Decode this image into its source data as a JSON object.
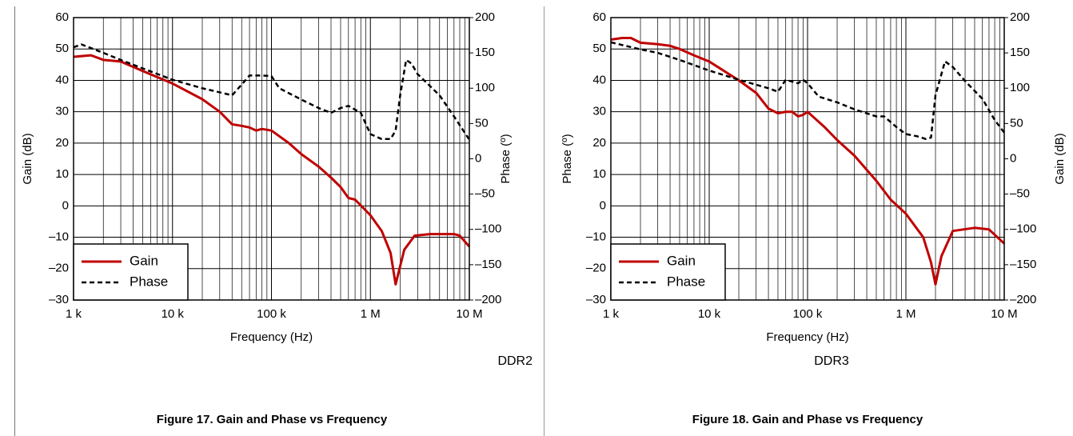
{
  "chart_data": [
    {
      "type": "line",
      "xlabel": "Frequency (Hz)",
      "ylabel": "Gain (dB)",
      "y2label": "Phase (º)",
      "annotation": "DDR2",
      "caption": "Figure 17. Gain and Phase vs Frequency",
      "xscale": "log",
      "xlim": [
        1000,
        10000000
      ],
      "xticks": [
        {
          "value": 1000,
          "label": "1 k"
        },
        {
          "value": 10000,
          "label": "10 k"
        },
        {
          "value": 100000,
          "label": "100 k"
        },
        {
          "value": 1000000,
          "label": "1 M"
        },
        {
          "value": 10000000,
          "label": "10 M"
        }
      ],
      "ylim": [
        -30,
        60
      ],
      "yticks": [
        60,
        50,
        40,
        30,
        20,
        10,
        0,
        {
          "value": -10,
          "label": "–10"
        },
        {
          "value": -20,
          "label": "–20"
        },
        {
          "value": -30,
          "label": "–30"
        }
      ],
      "y2lim": [
        -200,
        200
      ],
      "y2ticks": [
        200,
        150,
        100,
        50,
        0,
        {
          "value": -50,
          "label": "–50"
        },
        {
          "value": -100,
          "label": "–100"
        },
        {
          "value": -150,
          "label": "–150"
        },
        {
          "value": -200,
          "label": "–200"
        }
      ],
      "grid": true,
      "legend": "lower left",
      "series": [
        {
          "name": "Gain",
          "color": "#c00000",
          "dash": "solid",
          "x": [
            1000,
            1500,
            2000,
            3000,
            5000,
            10000,
            20000,
            30000,
            40000,
            50000,
            60000,
            70000,
            80000,
            100000,
            150000,
            200000,
            300000,
            400000,
            500000,
            600000,
            700000,
            1000000,
            1300000,
            1600000,
            1800000,
            2200000,
            2800000,
            4000000,
            7000000,
            8000000,
            10000000
          ],
          "values": [
            47.5,
            48,
            46.5,
            46,
            43,
            39,
            34,
            30,
            26,
            25.5,
            25,
            24,
            24.5,
            24,
            20,
            16.5,
            12.5,
            9,
            6,
            2.5,
            2,
            -3,
            -8,
            -15,
            -25,
            -14,
            -9.5,
            -9,
            -9,
            -9.5,
            -13
          ]
        },
        {
          "name": "Phase",
          "color": "#000000",
          "dash": "dashed",
          "axis": "y2",
          "x": [
            1000,
            1200,
            2000,
            3000,
            5000,
            10000,
            20000,
            40000,
            50000,
            60000,
            80000,
            100000,
            120000,
            200000,
            300000,
            400000,
            500000,
            600000,
            800000,
            1000000,
            1300000,
            1600000,
            1800000,
            2000000,
            2300000,
            2600000,
            3000000,
            5000000,
            7000000,
            10000000
          ],
          "values": [
            158,
            162,
            150,
            140,
            128,
            112,
            100,
            90,
            105,
            118,
            118,
            117,
            100,
            84,
            72,
            65,
            72,
            75,
            65,
            35,
            28,
            28,
            40,
            90,
            140,
            135,
            120,
            90,
            60,
            27
          ]
        }
      ]
    },
    {
      "type": "line",
      "xlabel": "Frequency (Hz)",
      "ylabel": "Phase (º)",
      "y2label": "Gain (dB)",
      "annotation": "DDR3",
      "caption": "Figure 18. Gain and Phase vs Frequency",
      "xscale": "log",
      "xlim": [
        1000,
        10000000
      ],
      "xticks": [
        {
          "value": 1000,
          "label": "1 k"
        },
        {
          "value": 10000,
          "label": "10 k"
        },
        {
          "value": 100000,
          "label": "100 k"
        },
        {
          "value": 1000000,
          "label": "1 M"
        },
        {
          "value": 10000000,
          "label": "10 M"
        }
      ],
      "ylim": [
        -30,
        60
      ],
      "yticks": [
        60,
        50,
        40,
        30,
        20,
        10,
        0,
        {
          "value": -10,
          "label": "–10"
        },
        {
          "value": -20,
          "label": "–20"
        },
        {
          "value": -30,
          "label": "–30"
        }
      ],
      "y2lim": [
        -200,
        200
      ],
      "y2ticks": [
        200,
        150,
        100,
        50,
        0,
        {
          "value": -50,
          "label": "–50"
        },
        {
          "value": -100,
          "label": "–100"
        },
        {
          "value": -150,
          "label": "–150"
        },
        {
          "value": -200,
          "label": "–200"
        }
      ],
      "grid": true,
      "legend": "lower left",
      "series": [
        {
          "name": "Gain",
          "color": "#c00000",
          "dash": "solid",
          "x": [
            1000,
            1300,
            1600,
            2000,
            3000,
            4000,
            5000,
            7000,
            10000,
            20000,
            30000,
            40000,
            50000,
            60000,
            70000,
            80000,
            90000,
            100000,
            150000,
            200000,
            300000,
            500000,
            700000,
            1000000,
            1500000,
            1800000,
            2000000,
            2300000,
            3000000,
            5000000,
            7000000,
            10000000
          ],
          "values": [
            53,
            53.5,
            53.5,
            52,
            51.5,
            51,
            50,
            48,
            46,
            40,
            36,
            31,
            29.5,
            30,
            30,
            28.5,
            29,
            30,
            25,
            21,
            16,
            8,
            2,
            -2.5,
            -10,
            -18,
            -25,
            -16,
            -8,
            -7,
            -7.5,
            -12
          ]
        },
        {
          "name": "Phase",
          "color": "#000000",
          "dash": "dashed",
          "axis": "y2",
          "x": [
            1000,
            2000,
            3000,
            5000,
            10000,
            20000,
            40000,
            50000,
            60000,
            80000,
            90000,
            100000,
            130000,
            200000,
            300000,
            500000,
            600000,
            800000,
            1000000,
            1300000,
            1600000,
            1800000,
            2000000,
            2500000,
            3000000,
            4000000,
            6000000,
            8000000,
            10000000
          ],
          "values": [
            165,
            155,
            150,
            140,
            125,
            112,
            100,
            95,
            112,
            107,
            112,
            107,
            88,
            80,
            70,
            60,
            60,
            45,
            35,
            32,
            28,
            30,
            90,
            138,
            130,
            110,
            85,
            55,
            37
          ]
        }
      ]
    }
  ]
}
